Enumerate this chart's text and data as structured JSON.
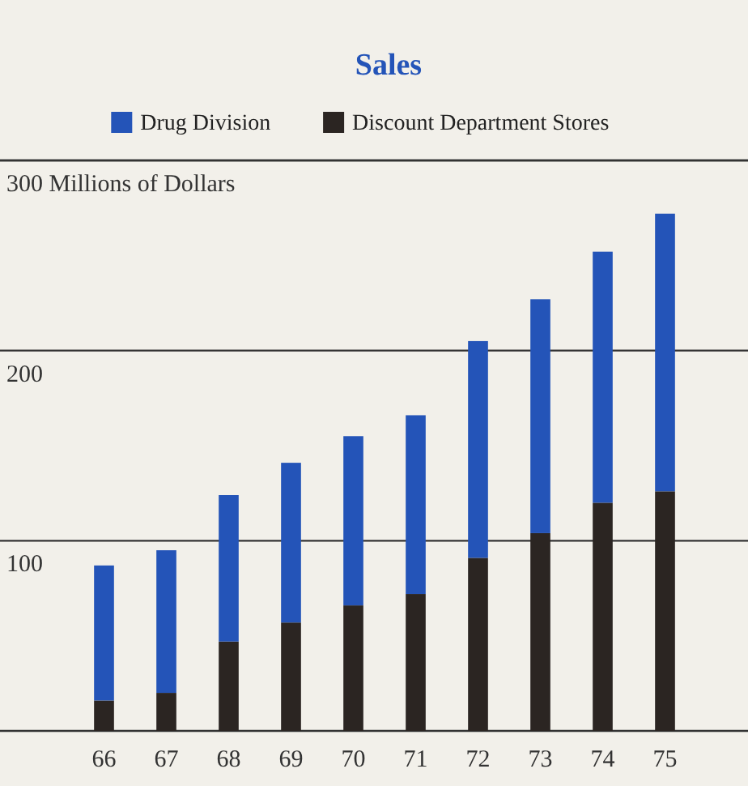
{
  "chart_data": {
    "type": "bar",
    "title": "Sales",
    "ylabel": "Millions of Dollars",
    "categories": [
      "66",
      "67",
      "68",
      "69",
      "70",
      "71",
      "72",
      "73",
      "74",
      "75"
    ],
    "stacked": true,
    "series": [
      {
        "name": "Discount Department Stores",
        "color": "#2b2522",
        "values": [
          16,
          20,
          47,
          57,
          66,
          72,
          91,
          104,
          120,
          126
        ]
      },
      {
        "name": "Drug Division",
        "color": "#2454b8",
        "values": [
          71,
          75,
          77,
          84,
          89,
          94,
          114,
          123,
          132,
          146
        ]
      }
    ],
    "ylim": [
      0,
      300
    ],
    "yticks": [
      {
        "value": 0,
        "label": null
      },
      100,
      200,
      300
    ],
    "grid": "y",
    "legend": "top"
  }
}
